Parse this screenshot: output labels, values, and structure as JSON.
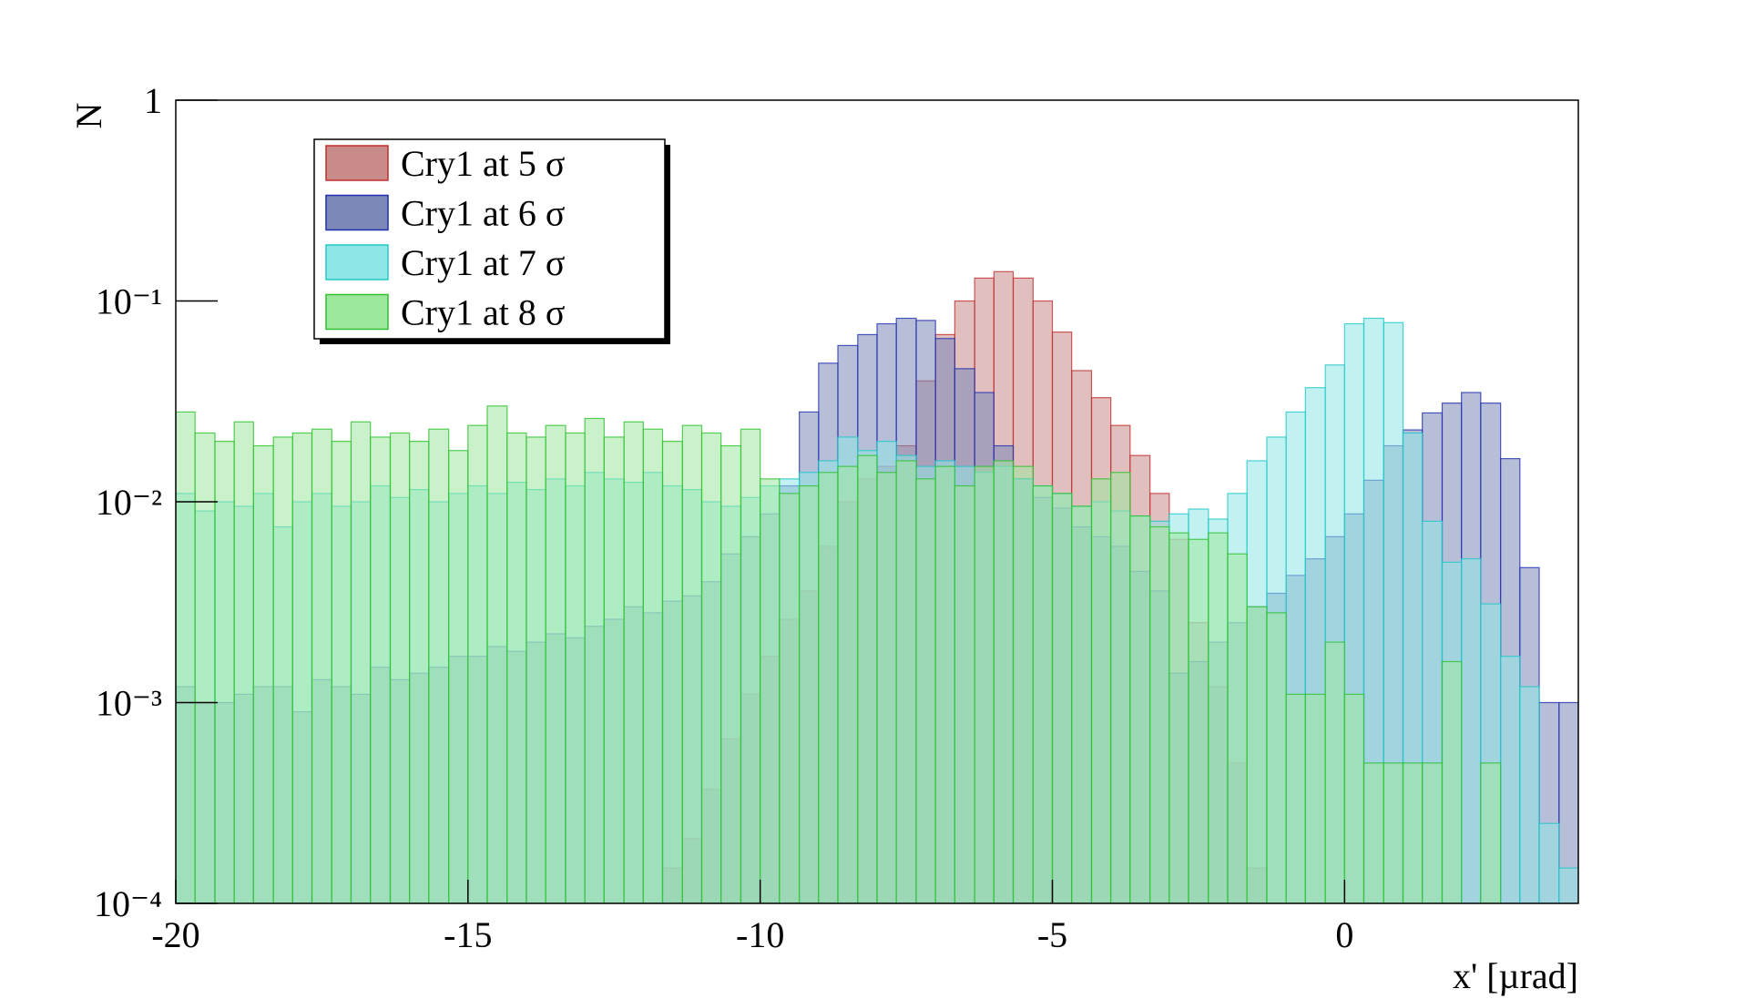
{
  "chart_data": {
    "type": "histogram",
    "x_label": "x' [µrad]",
    "y_label": "N",
    "log_y": true,
    "grid": false,
    "legend": "top-left",
    "xlim": [
      -20,
      4
    ],
    "ylim": [
      0.0001,
      1
    ],
    "xticks": [
      -20,
      -15,
      -10,
      -5,
      0
    ],
    "yticks": [
      {
        "value": 0.0001,
        "label": "10⁻⁴"
      },
      {
        "value": 0.001,
        "label": "10⁻³"
      },
      {
        "value": 0.01,
        "label": "10⁻²"
      },
      {
        "value": 0.1,
        "label": "10⁻¹"
      },
      1
    ],
    "bins": [
      -20,
      -19.67,
      -19.33,
      -19,
      -18.67,
      -18.33,
      -18,
      -17.67,
      -17.33,
      -17,
      -16.67,
      -16.33,
      -16,
      -15.67,
      -15.33,
      -15,
      -14.67,
      -14.33,
      -14,
      -13.67,
      -13.33,
      -13,
      -12.67,
      -12.33,
      -12,
      -11.67,
      -11.33,
      -11,
      -10.67,
      -10.33,
      -10,
      -9.67,
      -9.33,
      -9,
      -8.67,
      -8.33,
      -8,
      -7.67,
      -7.33,
      -7,
      -6.67,
      -6.33,
      -6,
      -5.67,
      -5.33,
      -5,
      -4.67,
      -4.33,
      -4,
      -3.67,
      -3.33,
      -3,
      -2.67,
      -2.33,
      -2,
      -1.67,
      -1.33,
      -1,
      -0.67,
      -0.33,
      0,
      0.33,
      0.67,
      1,
      1.33,
      1.67,
      2,
      2.33,
      2.67,
      3,
      3.33,
      3.67,
      4
    ],
    "series": [
      {
        "name": "Cry1 at 5 σ",
        "color": "#c98a8a",
        "edgecolor": "#c03030",
        "values": [
          0,
          0,
          0,
          0,
          0,
          0,
          0,
          0,
          0,
          0,
          0,
          0,
          0,
          0,
          0,
          0,
          0,
          0,
          0,
          0,
          0,
          0,
          0,
          0,
          0,
          0.00015,
          0.00021,
          0.00037,
          0.00066,
          0.0011,
          0.0017,
          0.0026,
          0.0036,
          0.006,
          0.01,
          0.013,
          0.015,
          0.019,
          0.04,
          0.068,
          0.1,
          0.13,
          0.14,
          0.13,
          0.1,
          0.07,
          0.045,
          0.033,
          0.024,
          0.017,
          0.011,
          0.0065,
          0.0025,
          0.0012,
          0.0005,
          0.00015,
          0,
          0,
          0,
          0,
          0,
          0,
          0,
          0,
          0,
          0,
          0,
          0,
          0,
          0,
          0,
          0
        ]
      },
      {
        "name": "Cry1 at 6 σ",
        "color": "#7c88b8",
        "edgecolor": "#2030b0",
        "values": [
          0.0012,
          0.001,
          0.001,
          0.0011,
          0.0012,
          0.0012,
          0.0009,
          0.0013,
          0.0012,
          0.0011,
          0.0015,
          0.0013,
          0.0014,
          0.0015,
          0.0017,
          0.0017,
          0.0019,
          0.0018,
          0.002,
          0.0022,
          0.0021,
          0.0024,
          0.0026,
          0.003,
          0.0028,
          0.0032,
          0.0034,
          0.004,
          0.0055,
          0.0067,
          0.0087,
          0.012,
          0.028,
          0.049,
          0.06,
          0.068,
          0.077,
          0.082,
          0.08,
          0.065,
          0.046,
          0.035,
          0.019,
          0.013,
          0.0105,
          0.0093,
          0.0075,
          0.0067,
          0.006,
          0.0045,
          0.0036,
          0.0014,
          0.0016,
          0.002,
          0.0025,
          0.003,
          0.0035,
          0.0043,
          0.0052,
          0.0067,
          0.0087,
          0.0128,
          0.019,
          0.0228,
          0.0277,
          0.031,
          0.035,
          0.031,
          0.0164,
          0.0047,
          0.001,
          0.001
        ]
      },
      {
        "name": "Cry1 at 7 σ",
        "color": "#8fe6e6",
        "edgecolor": "#20c8c8",
        "values": [
          0.011,
          0.009,
          0.01,
          0.0095,
          0.011,
          0.0075,
          0.01,
          0.011,
          0.0095,
          0.01,
          0.012,
          0.0105,
          0.0115,
          0.01,
          0.011,
          0.012,
          0.011,
          0.0125,
          0.0115,
          0.013,
          0.012,
          0.014,
          0.013,
          0.0125,
          0.014,
          0.012,
          0.0115,
          0.01,
          0.0095,
          0.0105,
          0.012,
          0.013,
          0.014,
          0.016,
          0.021,
          0.018,
          0.02,
          0.017,
          0.015,
          0.016,
          0.015,
          0.014,
          0.015,
          0.013,
          0.012,
          0.011,
          0.0095,
          0.01,
          0.009,
          0.0085,
          0.008,
          0.0087,
          0.0092,
          0.0082,
          0.011,
          0.016,
          0.021,
          0.028,
          0.037,
          0.048,
          0.077,
          0.082,
          0.078,
          0.022,
          0.008,
          0.005,
          0.0052,
          0.0031,
          0.0017,
          0.0012,
          0.00025,
          0.00015
        ]
      },
      {
        "name": "Cry1 at 8 σ",
        "color": "#9ee89e",
        "edgecolor": "#30c030",
        "values": [
          0.028,
          0.022,
          0.02,
          0.025,
          0.019,
          0.021,
          0.022,
          0.023,
          0.02,
          0.025,
          0.021,
          0.022,
          0.02,
          0.023,
          0.018,
          0.024,
          0.03,
          0.022,
          0.021,
          0.024,
          0.022,
          0.026,
          0.021,
          0.025,
          0.023,
          0.02,
          0.024,
          0.022,
          0.019,
          0.023,
          0.013,
          0.011,
          0.012,
          0.014,
          0.015,
          0.017,
          0.014,
          0.016,
          0.013,
          0.015,
          0.012,
          0.015,
          0.016,
          0.015,
          0.012,
          0.011,
          0.0095,
          0.013,
          0.014,
          0.0085,
          0.0075,
          0.007,
          0.0065,
          0.007,
          0.0055,
          0.003,
          0.0028,
          0.0011,
          0.0011,
          0.002,
          0.0011,
          0.0005,
          0.0005,
          0.0005,
          0.0005,
          0.0016,
          0,
          0.0005,
          0,
          0,
          0,
          0
        ]
      }
    ]
  }
}
